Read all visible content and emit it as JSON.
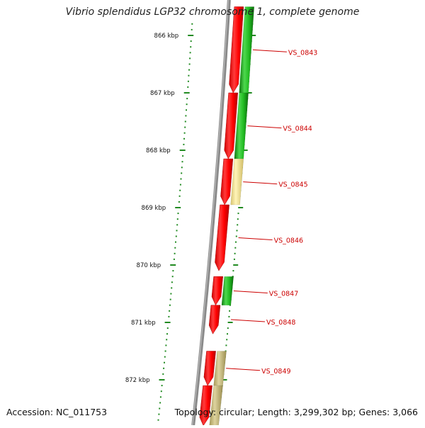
{
  "title": "Vibrio splendidus LGP32 chromosome 1, complete genome",
  "footer": {
    "accession": "Accession: NC_011753",
    "summary": "Topology: circular; Length: 3,299,302 bp; Genes: 3,066"
  },
  "colors": {
    "backbone": "#8a8a8a",
    "cds": "#ff0000",
    "gene_green": "#22bb22",
    "gene_yellow": "#f0e08a",
    "gene_olive": "#c4b878",
    "ticks": "#228b22",
    "labels": "#cc0000"
  },
  "ruler": {
    "unit": "kbp",
    "ticks": [
      {
        "kbp": 866,
        "label": "866 kbp"
      },
      {
        "kbp": 867,
        "label": "867 kbp"
      },
      {
        "kbp": 868,
        "label": "868 kbp"
      },
      {
        "kbp": 869,
        "label": "869 kbp"
      },
      {
        "kbp": 870,
        "label": "870 kbp"
      },
      {
        "kbp": 871,
        "label": "871 kbp"
      },
      {
        "kbp": 872,
        "label": "872 kbp"
      }
    ]
  },
  "genes": [
    {
      "locus_tag": "VS_0843",
      "start_kbp": 865.5,
      "end_kbp": 867.0,
      "cds_start_kbp": 865.5,
      "cds_end_kbp": 867.0,
      "strand": "forward",
      "color": "green"
    },
    {
      "locus_tag": "VS_0844",
      "start_kbp": 867.0,
      "end_kbp": 868.15,
      "cds_start_kbp": 867.0,
      "cds_end_kbp": 868.15,
      "strand": "forward",
      "color": "green"
    },
    {
      "locus_tag": "VS_0845",
      "start_kbp": 868.15,
      "end_kbp": 868.95,
      "cds_start_kbp": 868.15,
      "cds_end_kbp": 868.95,
      "strand": "forward",
      "color": "yellow"
    },
    {
      "locus_tag": "VS_0846",
      "start_kbp": 868.95,
      "end_kbp": 870.1,
      "cds_start_kbp": 868.95,
      "cds_end_kbp": 870.1,
      "strand": "forward",
      "color": "none"
    },
    {
      "locus_tag": "VS_0847",
      "start_kbp": 870.2,
      "end_kbp": 870.7,
      "cds_start_kbp": 870.2,
      "cds_end_kbp": 870.7,
      "strand": "forward",
      "color": "green"
    },
    {
      "locus_tag": "VS_0848",
      "start_kbp": 870.7,
      "end_kbp": 871.2,
      "cds_start_kbp": 870.7,
      "cds_end_kbp": 871.2,
      "strand": "forward",
      "color": "none"
    },
    {
      "locus_tag": "VS_0849",
      "start_kbp": 871.5,
      "end_kbp": 872.1,
      "cds_start_kbp": 871.5,
      "cds_end_kbp": 872.1,
      "strand": "forward",
      "color": "olive"
    },
    {
      "locus_tag": "",
      "start_kbp": 872.1,
      "end_kbp": 872.8,
      "cds_start_kbp": 872.1,
      "cds_end_kbp": 872.8,
      "strand": "forward",
      "color": "olive"
    }
  ]
}
